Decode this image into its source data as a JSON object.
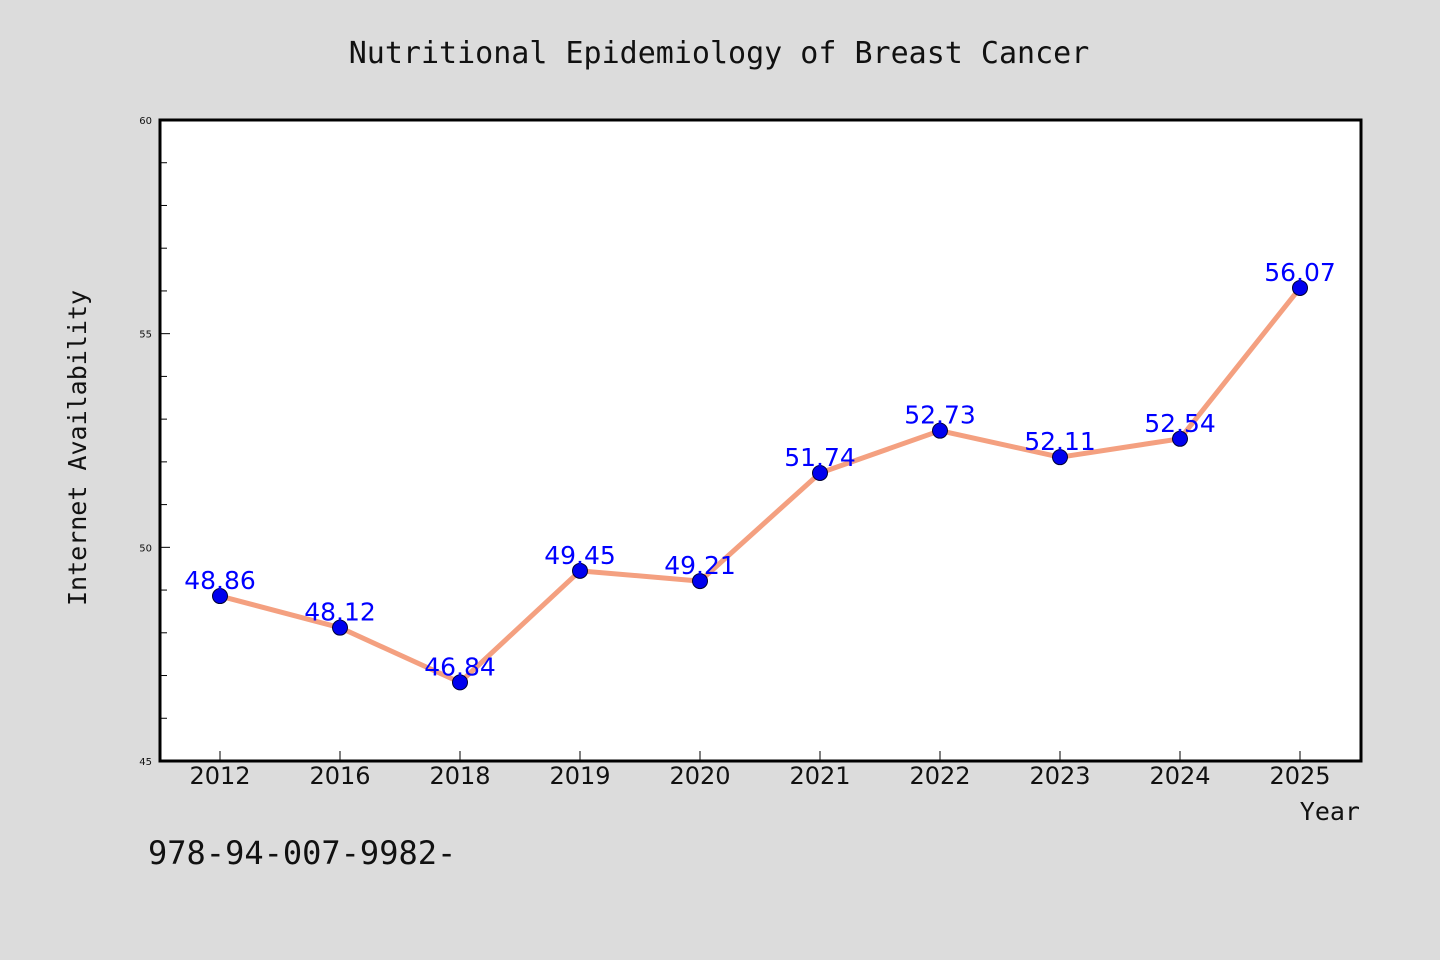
{
  "chart_data": {
    "type": "line",
    "title": "Nutritional Epidemiology of Breast Cancer",
    "xlabel": "Year",
    "ylabel": "Internet Availability",
    "categories": [
      "2012",
      "2016",
      "2018",
      "2019",
      "2020",
      "2021",
      "2022",
      "2023",
      "2024",
      "2025"
    ],
    "series": [
      {
        "values": [
          48.86,
          48.12,
          46.84,
          49.45,
          49.21,
          51.74,
          52.73,
          52.11,
          52.54,
          56.07
        ]
      }
    ],
    "data_labels": [
      "48.86",
      "48.12",
      "46.84",
      "49.45",
      "49.21",
      "51.74",
      "52.73",
      "52.11",
      "52.54",
      "56.07"
    ],
    "ylim": [
      45,
      60
    ],
    "y_major_ticks": [
      45,
      50,
      55,
      60
    ],
    "y_minor_step": 1,
    "grid": false,
    "legend": "none",
    "colors": {
      "line": "#f4a080",
      "marker": "#0000ee",
      "label": "#0000ff",
      "background": "#dcdcdc",
      "plot_background": "#ffffff"
    }
  },
  "footnote": "978-94-007-9982-"
}
